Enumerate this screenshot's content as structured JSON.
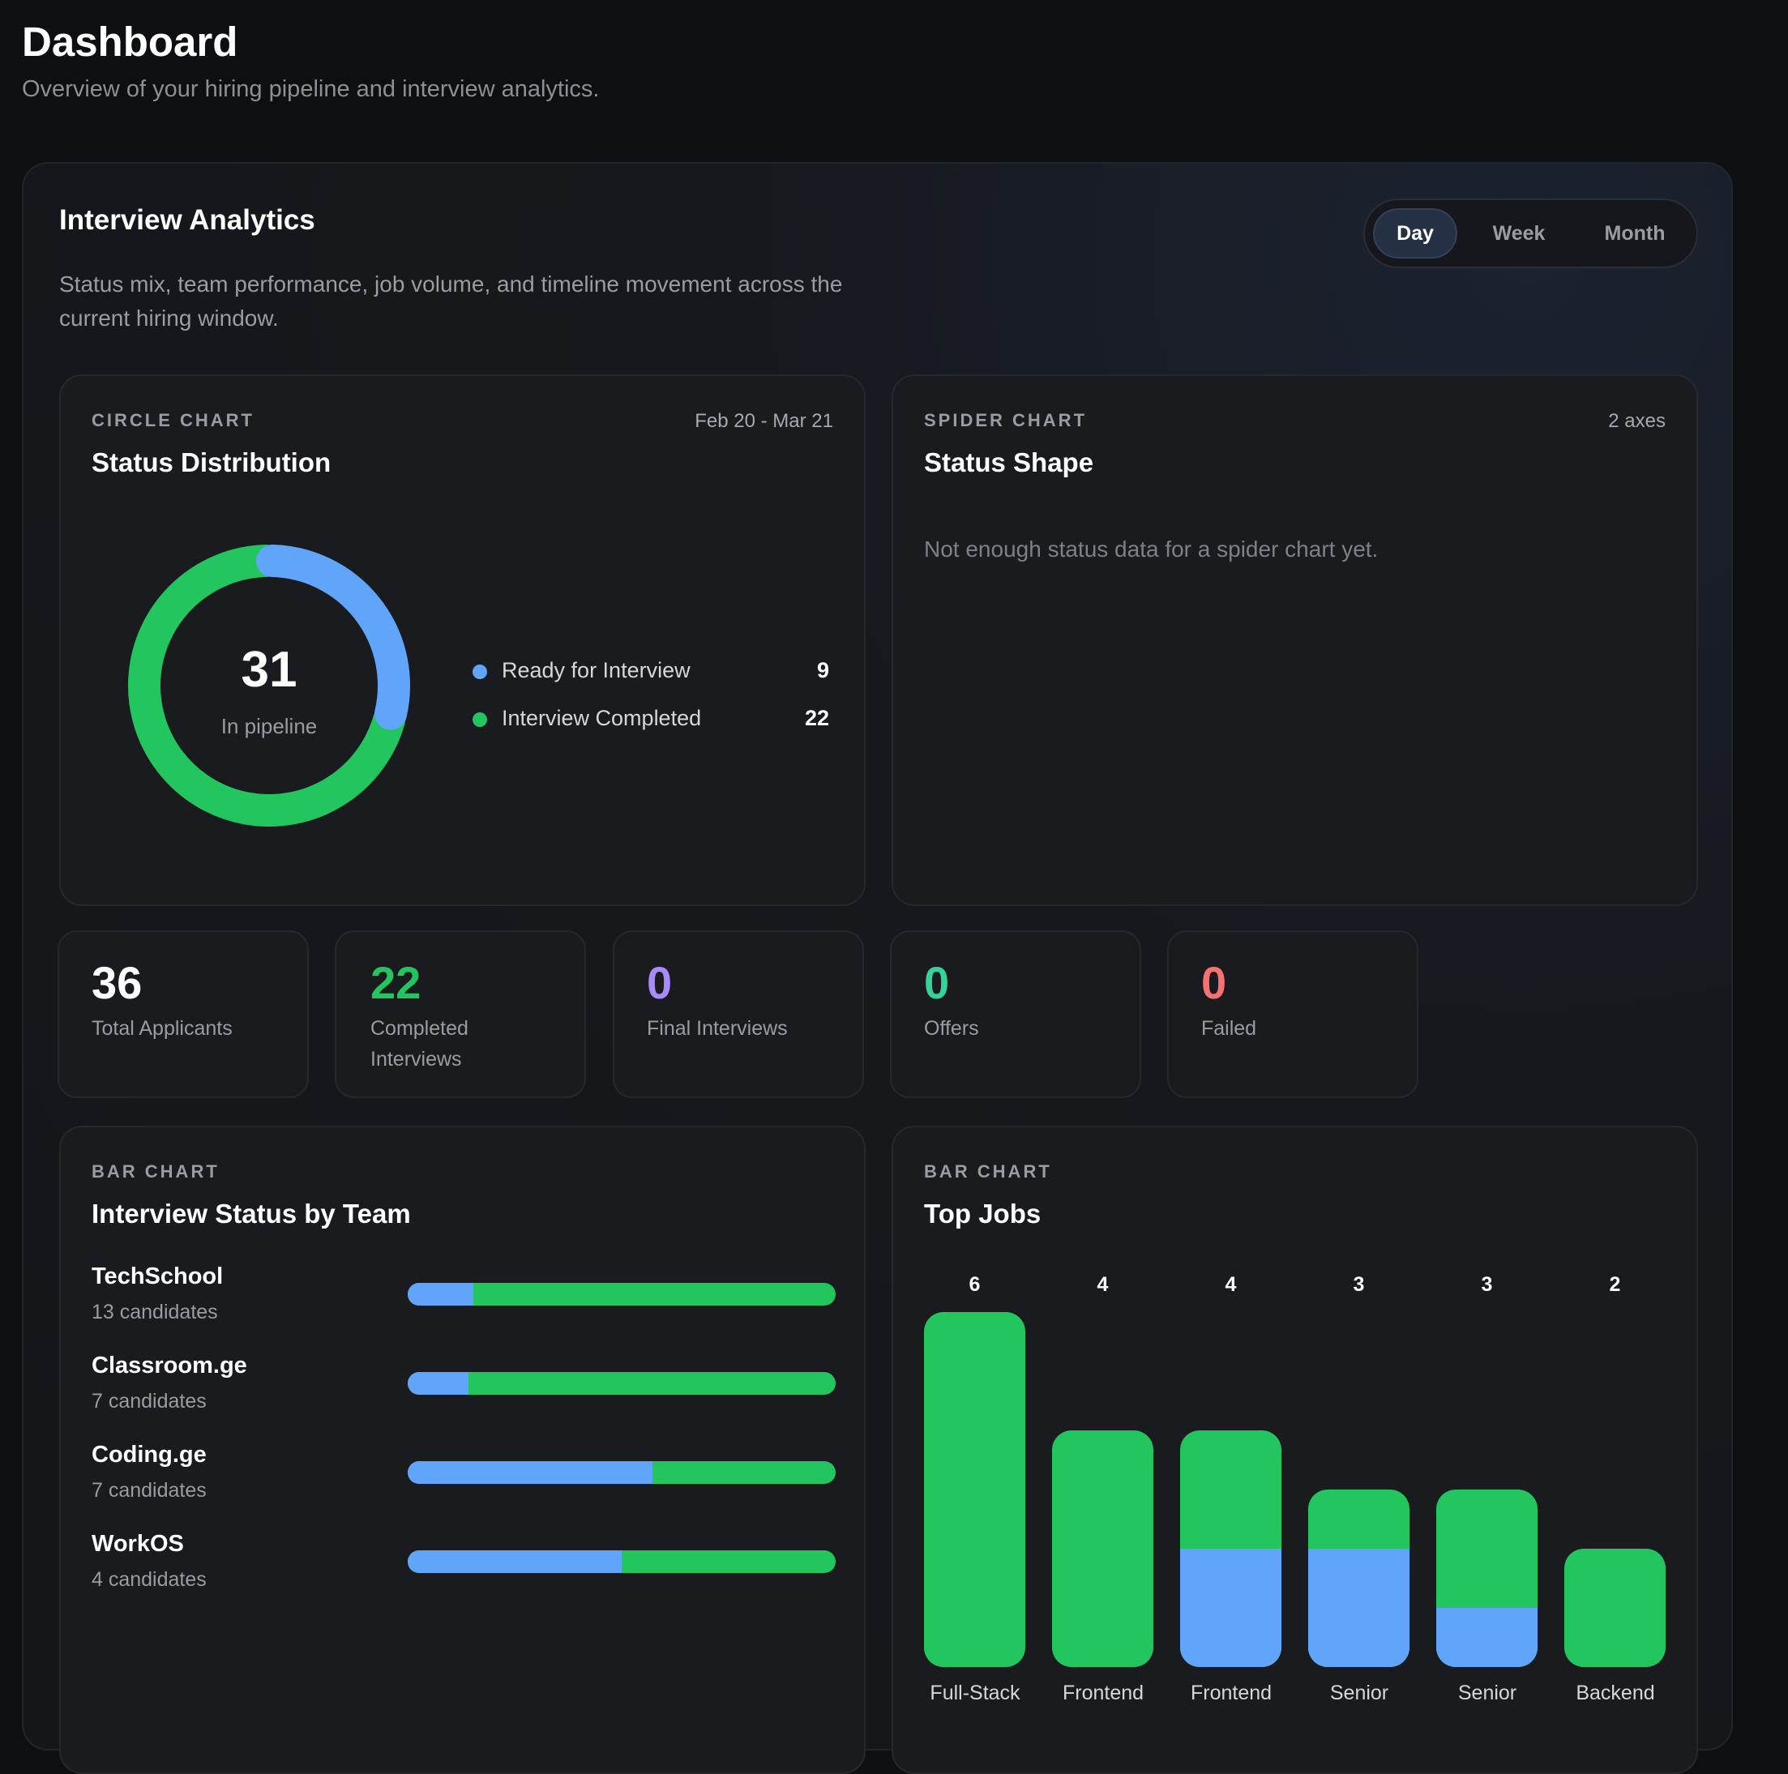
{
  "page": {
    "title": "Dashboard",
    "subtitle": "Overview of your hiring pipeline and interview analytics."
  },
  "analytics": {
    "title": "Interview Analytics",
    "description": "Status mix, team performance, job volume, and timeline movement across the current hiring window.",
    "range_toggle": {
      "options": [
        "Day",
        "Week",
        "Month"
      ],
      "selected": "Day"
    }
  },
  "colors": {
    "ready": "#60a5fa",
    "completed": "#22c55e",
    "final": "#a78bfa",
    "offers": "#34d399",
    "failed": "#f87171",
    "white": "#ffffff"
  },
  "status_card": {
    "eyebrow": "CIRCLE CHART",
    "title": "Status Distribution",
    "date_range": "Feb 20 - Mar 21",
    "center_value": "31",
    "center_label": "In pipeline",
    "legend": [
      {
        "label": "Ready for Interview",
        "value": "9"
      },
      {
        "label": "Interview Completed",
        "value": "22"
      }
    ]
  },
  "spider_card": {
    "eyebrow": "SPIDER CHART",
    "title": "Status Shape",
    "meta": "2 axes",
    "empty_message": "Not enough status data for a spider chart yet."
  },
  "stats": [
    {
      "value": "36",
      "label": "Total Applicants"
    },
    {
      "value": "22",
      "label": "Completed Interviews"
    },
    {
      "value": "0",
      "label": "Final Interviews"
    },
    {
      "value": "0",
      "label": "Offers"
    },
    {
      "value": "0",
      "label": "Failed"
    }
  ],
  "team_card": {
    "eyebrow": "BAR CHART",
    "title": "Interview Status by Team"
  },
  "jobs_card": {
    "eyebrow": "BAR CHART",
    "title": "Top Jobs"
  },
  "chart_data": [
    {
      "type": "pie",
      "title": "Status Distribution",
      "categories": [
        "Ready for Interview",
        "Interview Completed"
      ],
      "values": [
        9,
        22
      ],
      "total": 31
    },
    {
      "type": "bar",
      "orientation": "horizontal",
      "stacked": true,
      "title": "Interview Status by Team",
      "categories": [
        "TechSchool",
        "Classroom.ge",
        "Coding.ge",
        "WorkOS"
      ],
      "category_notes": [
        "13 candidates",
        "7 candidates",
        "7 candidates",
        "4 candidates"
      ],
      "series": [
        {
          "values": [
            2,
            1,
            4,
            2
          ]
        },
        {
          "values": [
            11,
            6,
            3,
            2
          ]
        }
      ]
    },
    {
      "type": "bar",
      "stacked": true,
      "title": "Top Jobs",
      "categories": [
        "Full-Stack",
        "Frontend",
        "Frontend",
        "Senior",
        "Senior",
        "Backend"
      ],
      "totals": [
        6,
        4,
        4,
        3,
        3,
        2
      ],
      "series": [
        {
          "values": [
            0,
            0,
            2,
            2,
            1,
            0
          ]
        },
        {
          "values": [
            6,
            4,
            2,
            1,
            2,
            2
          ]
        }
      ]
    }
  ]
}
